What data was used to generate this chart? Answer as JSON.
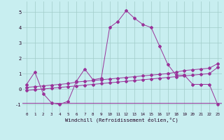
{
  "background_color": "#c8eef0",
  "grid_color": "#a0ccc8",
  "line_color": "#993399",
  "xlim": [
    -0.5,
    23.5
  ],
  "ylim": [
    -1.5,
    5.7
  ],
  "xticks": [
    0,
    1,
    2,
    3,
    4,
    5,
    6,
    7,
    8,
    9,
    10,
    11,
    12,
    13,
    14,
    15,
    16,
    17,
    18,
    19,
    20,
    21,
    22,
    23
  ],
  "yticks": [
    -1,
    0,
    1,
    2,
    3,
    4,
    5
  ],
  "xlabel": "Windchill (Refroidissement éolien,°C)",
  "series1_x": [
    0,
    1,
    2,
    3,
    4,
    5,
    6,
    7,
    8,
    9,
    10,
    11,
    12,
    13,
    14,
    15,
    16,
    17,
    18,
    19,
    20,
    21,
    22,
    23
  ],
  "series1_y": [
    0.3,
    1.1,
    -0.3,
    -0.9,
    -1.0,
    -0.8,
    0.5,
    1.3,
    0.6,
    0.7,
    4.0,
    4.4,
    5.1,
    4.6,
    4.2,
    4.0,
    2.8,
    1.6,
    0.9,
    0.9,
    0.3,
    0.3,
    0.3,
    -1.0
  ],
  "series2_x": [
    -0.5,
    23.5
  ],
  "series2_y": [
    -0.9,
    -0.9
  ],
  "series3_x": [
    0,
    1,
    2,
    3,
    4,
    5,
    6,
    7,
    8,
    9,
    10,
    11,
    12,
    13,
    14,
    15,
    16,
    17,
    18,
    19,
    20,
    21,
    22,
    23
  ],
  "series3_y": [
    0.1,
    0.15,
    0.2,
    0.25,
    0.3,
    0.35,
    0.45,
    0.5,
    0.55,
    0.6,
    0.65,
    0.7,
    0.75,
    0.8,
    0.85,
    0.9,
    0.95,
    1.0,
    1.1,
    1.2,
    1.25,
    1.3,
    1.35,
    1.65
  ],
  "series4_x": [
    0,
    1,
    2,
    3,
    4,
    5,
    6,
    7,
    8,
    9,
    10,
    11,
    12,
    13,
    14,
    15,
    16,
    17,
    18,
    19,
    20,
    21,
    22,
    23
  ],
  "series4_y": [
    -0.1,
    -0.05,
    0.0,
    0.05,
    0.1,
    0.15,
    0.2,
    0.25,
    0.3,
    0.35,
    0.4,
    0.45,
    0.5,
    0.55,
    0.6,
    0.65,
    0.7,
    0.75,
    0.8,
    0.85,
    0.9,
    0.95,
    1.0,
    1.4
  ]
}
